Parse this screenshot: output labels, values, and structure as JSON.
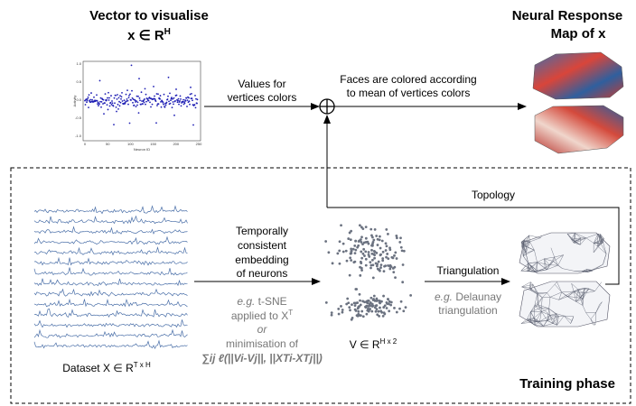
{
  "top": {
    "title": "Vector to visualise",
    "vector": {
      "base": "x ∈ R",
      "sup": "H"
    },
    "plot": {
      "ylabel": "Activity",
      "xlabel": "Neuron ID",
      "yticks": [
        "1.0",
        "0.5",
        "0.0",
        "-0.5",
        "-1.0"
      ],
      "xticks": [
        "0",
        "50",
        "100",
        "150",
        "200",
        "250"
      ]
    },
    "arrow1": [
      "Values for",
      "vertices colors"
    ],
    "arrow2": [
      "Faces are colored according",
      "to mean of vertices colors"
    ],
    "result": [
      "Neural Response",
      "Map of x"
    ]
  },
  "training": {
    "label": "Training phase",
    "topology": "Topology",
    "dataset": {
      "base": "Dataset  X ∈ R",
      "sup": "T x H"
    },
    "embedding": [
      "Temporally",
      "consistent",
      "embedding",
      "of neurons"
    ],
    "method": {
      "eg": "e.g.",
      "tsne": "t-SNE",
      "applied": "applied to X",
      "applied_sup": "T",
      "or": "or",
      "min": "minimisation of",
      "formula": "∑ij ℓ(||Vi-Vj||, ||XTi-XTj||)"
    },
    "vspace": {
      "base": "V ∈ R",
      "sup": "H x 2"
    },
    "triangulation": "Triangulation",
    "tri_method": {
      "eg": "e.g.",
      "name": "Delaunay",
      "line2": "triangulation"
    }
  }
}
